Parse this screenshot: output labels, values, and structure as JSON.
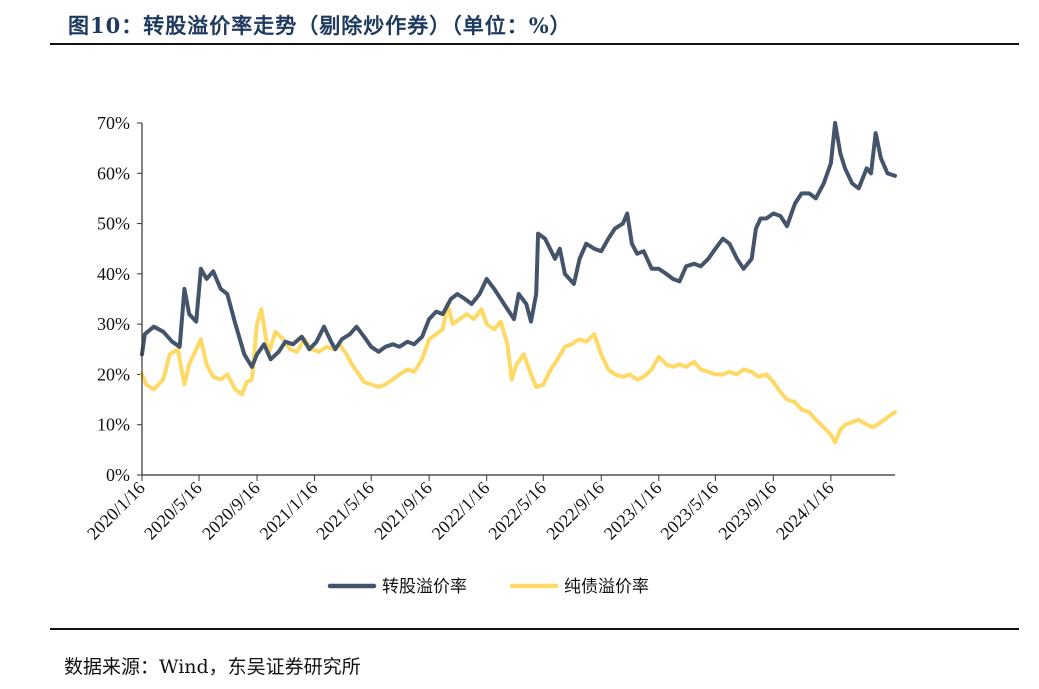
{
  "header": {
    "title": "图10：转股溢价率走势（剔除炒作券）（单位：%）"
  },
  "footer": {
    "source": "数据来源：Wind，东吴证券研究所"
  },
  "chart_data": {
    "type": "line",
    "ylim": [
      0,
      70
    ],
    "yticks": [
      "0%",
      "10%",
      "20%",
      "30%",
      "40%",
      "50%",
      "60%",
      "70%"
    ],
    "x_tick_labels": [
      "2020/1/16",
      "2020/5/16",
      "2020/9/16",
      "2021/1/16",
      "2021/5/16",
      "2021/9/16",
      "2022/1/16",
      "2022/5/16",
      "2022/9/16",
      "2023/1/16",
      "2023/5/16",
      "2023/9/16",
      "2024/1/16"
    ],
    "x_range": [
      "2020/1/16",
      "2024/5/31"
    ],
    "legend_position": "bottom",
    "series": [
      {
        "name": "转股溢价率",
        "color": "#44546a",
        "points": [
          [
            "2020/1/16",
            24
          ],
          [
            "2020/1/22",
            28
          ],
          [
            "2020/2/10",
            29.5
          ],
          [
            "2020/3/1",
            28.5
          ],
          [
            "2020/3/20",
            26.5
          ],
          [
            "2020/4/5",
            25.5
          ],
          [
            "2020/4/15",
            37
          ],
          [
            "2020/4/25",
            32
          ],
          [
            "2020/5/10",
            30.5
          ],
          [
            "2020/5/20",
            41
          ],
          [
            "2020/6/1",
            39
          ],
          [
            "2020/6/15",
            40.5
          ],
          [
            "2020/7/1",
            37
          ],
          [
            "2020/7/15",
            36
          ],
          [
            "2020/8/1",
            30
          ],
          [
            "2020/8/20",
            24
          ],
          [
            "2020/9/5",
            21.5
          ],
          [
            "2020/9/16",
            24
          ],
          [
            "2020/10/1",
            26
          ],
          [
            "2020/10/15",
            23
          ],
          [
            "2020/11/1",
            24.5
          ],
          [
            "2020/11/15",
            26.5
          ],
          [
            "2020/12/1",
            26
          ],
          [
            "2020/12/20",
            27.5
          ],
          [
            "2021/1/5",
            25
          ],
          [
            "2021/1/20",
            26.5
          ],
          [
            "2021/2/5",
            29.5
          ],
          [
            "2021/2/20",
            26.5
          ],
          [
            "2021/3/1",
            25
          ],
          [
            "2021/3/15",
            27
          ],
          [
            "2021/4/1",
            28
          ],
          [
            "2021/4/15",
            29.5
          ],
          [
            "2021/5/1",
            27.5
          ],
          [
            "2021/5/16",
            25.5
          ],
          [
            "2021/6/1",
            24.5
          ],
          [
            "2021/6/15",
            25.5
          ],
          [
            "2021/7/1",
            26
          ],
          [
            "2021/7/15",
            25.5
          ],
          [
            "2021/8/1",
            26.5
          ],
          [
            "2021/8/15",
            26
          ],
          [
            "2021/9/1",
            27.5
          ],
          [
            "2021/9/16",
            31
          ],
          [
            "2021/10/1",
            32.5
          ],
          [
            "2021/10/15",
            32
          ],
          [
            "2021/11/1",
            35
          ],
          [
            "2021/11/15",
            36
          ],
          [
            "2021/12/1",
            35
          ],
          [
            "2021/12/15",
            34
          ],
          [
            "2022/1/1",
            36
          ],
          [
            "2022/1/16",
            39
          ],
          [
            "2022/2/1",
            37
          ],
          [
            "2022/2/15",
            35
          ],
          [
            "2022/3/1",
            33
          ],
          [
            "2022/3/15",
            31
          ],
          [
            "2022/3/25",
            36
          ],
          [
            "2022/4/10",
            34
          ],
          [
            "2022/4/20",
            30.5
          ],
          [
            "2022/5/1",
            36
          ],
          [
            "2022/5/5",
            48
          ],
          [
            "2022/5/20",
            47
          ],
          [
            "2022/6/10",
            43
          ],
          [
            "2022/6/20",
            45
          ],
          [
            "2022/7/1",
            40
          ],
          [
            "2022/7/20",
            38
          ],
          [
            "2022/8/1",
            43
          ],
          [
            "2022/8/15",
            46
          ],
          [
            "2022/9/1",
            45
          ],
          [
            "2022/9/16",
            44.5
          ],
          [
            "2022/10/1",
            47
          ],
          [
            "2022/10/15",
            49
          ],
          [
            "2022/11/1",
            50
          ],
          [
            "2022/11/10",
            52
          ],
          [
            "2022/11/20",
            46
          ],
          [
            "2022/12/1",
            44
          ],
          [
            "2022/12/15",
            44.5
          ],
          [
            "2023/1/1",
            41
          ],
          [
            "2023/1/16",
            41
          ],
          [
            "2023/2/1",
            40
          ],
          [
            "2023/2/15",
            39
          ],
          [
            "2023/3/1",
            38.5
          ],
          [
            "2023/3/15",
            41.5
          ],
          [
            "2023/4/1",
            42
          ],
          [
            "2023/4/15",
            41.5
          ],
          [
            "2023/5/1",
            43
          ],
          [
            "2023/5/16",
            45
          ],
          [
            "2023/6/1",
            47
          ],
          [
            "2023/6/15",
            46
          ],
          [
            "2023/7/1",
            43
          ],
          [
            "2023/7/15",
            41
          ],
          [
            "2023/8/1",
            43
          ],
          [
            "2023/8/10",
            49
          ],
          [
            "2023/8/20",
            51
          ],
          [
            "2023/9/1",
            51
          ],
          [
            "2023/9/16",
            52
          ],
          [
            "2023/10/1",
            51.5
          ],
          [
            "2023/10/15",
            49.5
          ],
          [
            "2023/11/1",
            54
          ],
          [
            "2023/11/15",
            56
          ],
          [
            "2023/12/1",
            56
          ],
          [
            "2023/12/15",
            55
          ],
          [
            "2024/1/1",
            58
          ],
          [
            "2024/1/16",
            62
          ],
          [
            "2024/1/25",
            70
          ],
          [
            "2024/2/5",
            64
          ],
          [
            "2024/2/15",
            61
          ],
          [
            "2024/3/1",
            58
          ],
          [
            "2024/3/15",
            57
          ],
          [
            "2024/4/1",
            61
          ],
          [
            "2024/4/10",
            60
          ],
          [
            "2024/4/20",
            68
          ],
          [
            "2024/5/1",
            63
          ],
          [
            "2024/5/15",
            60
          ],
          [
            "2024/5/31",
            59.5
          ]
        ]
      },
      {
        "name": "纯债溢价率",
        "color": "#ffd966",
        "points": [
          [
            "2020/1/16",
            20
          ],
          [
            "2020/1/25",
            18
          ],
          [
            "2020/2/10",
            17
          ],
          [
            "2020/3/1",
            19
          ],
          [
            "2020/3/15",
            24
          ],
          [
            "2020/4/1",
            25
          ],
          [
            "2020/4/15",
            18
          ],
          [
            "2020/4/25",
            22
          ],
          [
            "2020/5/10",
            25
          ],
          [
            "2020/5/20",
            27
          ],
          [
            "2020/6/1",
            22
          ],
          [
            "2020/6/15",
            19.5
          ],
          [
            "2020/7/1",
            19
          ],
          [
            "2020/7/15",
            20
          ],
          [
            "2020/8/1",
            17
          ],
          [
            "2020/8/15",
            16
          ],
          [
            "2020/8/25",
            18.5
          ],
          [
            "2020/9/5",
            19
          ],
          [
            "2020/9/16",
            30
          ],
          [
            "2020/9/25",
            33
          ],
          [
            "2020/10/10",
            24
          ],
          [
            "2020/10/25",
            28.5
          ],
          [
            "2020/11/10",
            27
          ],
          [
            "2020/11/25",
            25
          ],
          [
            "2020/12/10",
            24.5
          ],
          [
            "2020/12/25",
            27
          ],
          [
            "2021/1/10",
            25
          ],
          [
            "2021/1/25",
            24.5
          ],
          [
            "2021/2/10",
            25.5
          ],
          [
            "2021/2/25",
            25
          ],
          [
            "2021/3/10",
            26
          ],
          [
            "2021/3/25",
            24
          ],
          [
            "2021/4/5",
            22
          ],
          [
            "2021/4/20",
            20
          ],
          [
            "2021/5/1",
            18.5
          ],
          [
            "2021/5/16",
            18
          ],
          [
            "2021/6/1",
            17.5
          ],
          [
            "2021/6/15",
            18
          ],
          [
            "2021/7/1",
            19
          ],
          [
            "2021/7/15",
            20
          ],
          [
            "2021/8/1",
            21
          ],
          [
            "2021/8/15",
            20.5
          ],
          [
            "2021/9/1",
            23
          ],
          [
            "2021/9/16",
            27
          ],
          [
            "2021/10/1",
            28
          ],
          [
            "2021/10/15",
            29
          ],
          [
            "2021/10/25",
            34
          ],
          [
            "2021/11/5",
            30
          ],
          [
            "2021/11/20",
            31
          ],
          [
            "2021/12/5",
            32
          ],
          [
            "2021/12/20",
            31
          ],
          [
            "2022/1/5",
            33
          ],
          [
            "2022/1/16",
            30
          ],
          [
            "2022/2/1",
            29
          ],
          [
            "2022/2/15",
            30.5
          ],
          [
            "2022/3/1",
            26
          ],
          [
            "2022/3/10",
            19
          ],
          [
            "2022/3/20",
            22
          ],
          [
            "2022/4/5",
            24
          ],
          [
            "2022/4/20",
            20
          ],
          [
            "2022/5/1",
            17.5
          ],
          [
            "2022/5/16",
            18
          ],
          [
            "2022/6/1",
            21
          ],
          [
            "2022/6/15",
            23
          ],
          [
            "2022/7/1",
            25.5
          ],
          [
            "2022/7/15",
            26
          ],
          [
            "2022/8/1",
            27
          ],
          [
            "2022/8/15",
            26.5
          ],
          [
            "2022/9/1",
            28
          ],
          [
            "2022/9/16",
            24
          ],
          [
            "2022/10/1",
            21
          ],
          [
            "2022/10/15",
            20
          ],
          [
            "2022/11/1",
            19.5
          ],
          [
            "2022/11/15",
            20
          ],
          [
            "2022/12/1",
            19
          ],
          [
            "2022/12/15",
            19.5
          ],
          [
            "2023/1/1",
            21
          ],
          [
            "2023/1/16",
            23.5
          ],
          [
            "2023/2/1",
            22
          ],
          [
            "2023/2/15",
            21.5
          ],
          [
            "2023/3/1",
            22
          ],
          [
            "2023/3/15",
            21.5
          ],
          [
            "2023/4/1",
            22.5
          ],
          [
            "2023/4/15",
            21
          ],
          [
            "2023/5/1",
            20.5
          ],
          [
            "2023/5/16",
            20
          ],
          [
            "2023/6/1",
            20
          ],
          [
            "2023/6/15",
            20.5
          ],
          [
            "2023/7/1",
            20
          ],
          [
            "2023/7/15",
            21
          ],
          [
            "2023/8/1",
            20.5
          ],
          [
            "2023/8/15",
            19.5
          ],
          [
            "2023/9/1",
            20
          ],
          [
            "2023/9/16",
            18.5
          ],
          [
            "2023/10/1",
            16.5
          ],
          [
            "2023/10/15",
            15
          ],
          [
            "2023/11/1",
            14.5
          ],
          [
            "2023/11/15",
            13
          ],
          [
            "2023/12/1",
            12.5
          ],
          [
            "2023/12/15",
            11
          ],
          [
            "2024/1/1",
            9.5
          ],
          [
            "2024/1/16",
            8
          ],
          [
            "2024/1/25",
            6.5
          ],
          [
            "2024/2/5",
            9
          ],
          [
            "2024/2/15",
            10
          ],
          [
            "2024/3/1",
            10.5
          ],
          [
            "2024/3/15",
            11
          ],
          [
            "2024/4/1",
            10
          ],
          [
            "2024/4/15",
            9.5
          ],
          [
            "2024/5/1",
            10.5
          ],
          [
            "2024/5/15",
            11.5
          ],
          [
            "2024/5/31",
            12.5
          ]
        ]
      }
    ]
  }
}
